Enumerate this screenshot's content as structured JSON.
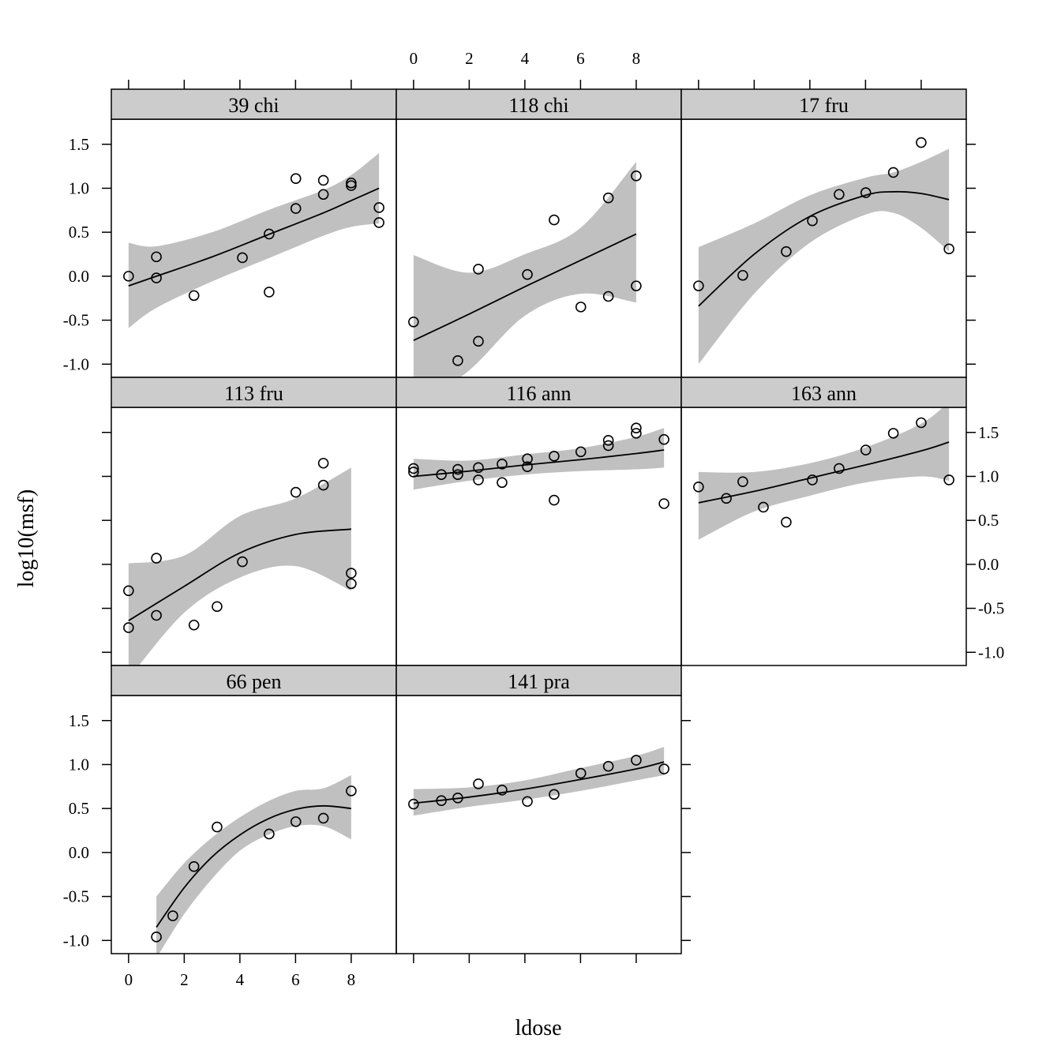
{
  "chart_data": {
    "type": "scatter",
    "layout": "lattice 3x3 panels with smooth fit and confidence band",
    "xlabel": "ldose",
    "ylabel": "log10(msf)",
    "xlim": [
      -0.62,
      9.62
    ],
    "ylim": [
      -1.15,
      1.785
    ],
    "x_ticks": [
      0,
      2,
      4,
      6,
      8
    ],
    "y_ticks": [
      -1.0,
      -0.5,
      0.0,
      0.5,
      1.0,
      1.5
    ],
    "y_tick_labels": [
      "-1.0",
      "-0.5",
      "0.0",
      "0.5",
      "1.0",
      "1.5"
    ],
    "colors": {
      "band": "#c0c0c0",
      "strip": "#cccccc",
      "line": "#000000",
      "points": "#000000"
    },
    "panels": [
      {
        "name": "39 chi",
        "col": 0,
        "row": 0,
        "points": [
          [
            0,
            0
          ],
          [
            1,
            0.22
          ],
          [
            1,
            -0.02
          ],
          [
            2.35,
            -0.22
          ],
          [
            4.09,
            0.21
          ],
          [
            5.05,
            0.48
          ],
          [
            5.05,
            -0.18
          ],
          [
            6.01,
            1.11
          ],
          [
            6.01,
            0.77
          ],
          [
            7,
            1.09
          ],
          [
            7,
            0.93
          ],
          [
            8,
            1.06
          ],
          [
            8,
            1.03
          ],
          [
            9,
            0.78
          ],
          [
            9,
            0.61
          ]
        ],
        "smooth": {
          "x": [
            0,
            1,
            3,
            5,
            7,
            8,
            9
          ],
          "fit": [
            -0.11,
            0.0,
            0.22,
            0.47,
            0.72,
            0.86,
            1.0
          ],
          "lower": [
            -0.59,
            -0.36,
            -0.06,
            0.2,
            0.46,
            0.56,
            0.6
          ],
          "upper": [
            0.38,
            0.34,
            0.5,
            0.75,
            0.98,
            1.15,
            1.4
          ]
        }
      },
      {
        "name": "118 chi",
        "col": 1,
        "row": 0,
        "points": [
          [
            0,
            -0.52
          ],
          [
            1.59,
            -0.96
          ],
          [
            2.33,
            -0.74
          ],
          [
            2.33,
            0.08
          ],
          [
            4.09,
            0.02
          ],
          [
            5.05,
            0.64
          ],
          [
            6.01,
            -0.35
          ],
          [
            7,
            0.89
          ],
          [
            7,
            -0.23
          ],
          [
            8,
            1.14
          ],
          [
            8,
            -0.11
          ]
        ],
        "smooth": {
          "x": [
            0,
            2,
            4,
            6,
            8
          ],
          "fit": [
            -0.73,
            -0.43,
            -0.12,
            0.18,
            0.48
          ],
          "lower": [
            -1.5,
            -1.07,
            -0.45,
            -0.2,
            -0.3
          ],
          "upper": [
            0.24,
            0.04,
            0.25,
            0.55,
            1.3
          ]
        }
      },
      {
        "name": "17 fru",
        "col": 2,
        "row": 0,
        "points": [
          [
            0,
            -0.11
          ],
          [
            1.59,
            0.01
          ],
          [
            3.15,
            0.28
          ],
          [
            4.09,
            0.63
          ],
          [
            5.05,
            0.93
          ],
          [
            6.01,
            0.95
          ],
          [
            7,
            1.18
          ],
          [
            8,
            1.52
          ],
          [
            9,
            0.31
          ]
        ],
        "smooth": {
          "x": [
            0,
            2,
            4,
            6,
            7,
            8,
            9
          ],
          "fit": [
            -0.34,
            0.25,
            0.68,
            0.92,
            0.96,
            0.94,
            0.87
          ],
          "lower": [
            -1.0,
            -0.2,
            0.38,
            0.7,
            0.72,
            0.55,
            0.28
          ],
          "upper": [
            0.33,
            0.6,
            0.92,
            1.12,
            1.18,
            1.3,
            1.45
          ]
        }
      },
      {
        "name": "113 fru",
        "col": 0,
        "row": 1,
        "points": [
          [
            0,
            -0.3
          ],
          [
            0,
            -0.72
          ],
          [
            1,
            0.07
          ],
          [
            1,
            -0.58
          ],
          [
            2.35,
            -0.69
          ],
          [
            3.18,
            -0.48
          ],
          [
            4.09,
            0.03
          ],
          [
            6.01,
            0.82
          ],
          [
            7,
            0.9
          ],
          [
            7,
            1.15
          ],
          [
            8,
            -0.1
          ],
          [
            8,
            -0.22
          ]
        ],
        "smooth": {
          "x": [
            0,
            2,
            4,
            6,
            8
          ],
          "fit": [
            -0.64,
            -0.25,
            0.13,
            0.34,
            0.4
          ],
          "lower": [
            -1.3,
            -0.55,
            -0.15,
            -0.02,
            -0.3
          ],
          "upper": [
            0.01,
            0.1,
            0.55,
            0.75,
            1.1
          ]
        }
      },
      {
        "name": "116 ann",
        "col": 1,
        "row": 1,
        "points": [
          [
            0,
            1.09
          ],
          [
            0,
            1.05
          ],
          [
            1,
            1.02
          ],
          [
            1.59,
            1.02
          ],
          [
            1.59,
            1.08
          ],
          [
            2.33,
            1.1
          ],
          [
            2.33,
            0.96
          ],
          [
            3.18,
            1.14
          ],
          [
            3.18,
            0.93
          ],
          [
            4.09,
            1.2
          ],
          [
            4.09,
            1.11
          ],
          [
            5.05,
            1.23
          ],
          [
            5.05,
            0.73
          ],
          [
            6.01,
            1.28
          ],
          [
            7,
            1.41
          ],
          [
            7,
            1.35
          ],
          [
            8,
            1.55
          ],
          [
            8,
            1.49
          ],
          [
            9,
            1.42
          ],
          [
            9,
            0.69
          ]
        ],
        "smooth": {
          "x": [
            0,
            2,
            4,
            6,
            8,
            9
          ],
          "fit": [
            1.0,
            1.06,
            1.13,
            1.19,
            1.26,
            1.3
          ],
          "lower": [
            0.85,
            0.95,
            1.02,
            1.06,
            1.08,
            1.1
          ],
          "upper": [
            1.2,
            1.18,
            1.25,
            1.32,
            1.45,
            1.55
          ]
        }
      },
      {
        "name": "163 ann",
        "col": 2,
        "row": 1,
        "points": [
          [
            0,
            0.88
          ],
          [
            1,
            0.75
          ],
          [
            1.59,
            0.94
          ],
          [
            2.33,
            0.65
          ],
          [
            3.15,
            0.48
          ],
          [
            4.09,
            0.96
          ],
          [
            5.05,
            1.09
          ],
          [
            6.01,
            1.3
          ],
          [
            7,
            1.49
          ],
          [
            8,
            1.61
          ],
          [
            9,
            0.96
          ]
        ],
        "smooth": {
          "x": [
            0,
            2,
            4,
            6,
            8,
            9
          ],
          "fit": [
            0.7,
            0.83,
            0.98,
            1.13,
            1.29,
            1.39
          ],
          "lower": [
            0.28,
            0.6,
            0.78,
            0.93,
            1.0,
            0.95
          ],
          "upper": [
            1.05,
            1.05,
            1.15,
            1.33,
            1.6,
            1.85
          ]
        }
      },
      {
        "name": "66 pen",
        "col": 0,
        "row": 2,
        "points": [
          [
            1,
            -0.96
          ],
          [
            1.59,
            -0.72
          ],
          [
            2.35,
            -0.16
          ],
          [
            3.18,
            0.29
          ],
          [
            5.05,
            0.21
          ],
          [
            6.01,
            0.35
          ],
          [
            7,
            0.39
          ],
          [
            8,
            0.7
          ]
        ],
        "smooth": {
          "x": [
            1,
            2,
            3,
            4,
            5,
            6,
            7,
            8
          ],
          "fit": [
            -0.85,
            -0.4,
            -0.05,
            0.2,
            0.38,
            0.49,
            0.53,
            0.5
          ],
          "lower": [
            -1.2,
            -0.7,
            -0.3,
            0.02,
            0.2,
            0.3,
            0.3,
            0.15
          ],
          "upper": [
            -0.5,
            -0.12,
            0.17,
            0.4,
            0.58,
            0.7,
            0.73,
            0.88
          ]
        }
      },
      {
        "name": "141 pra",
        "col": 1,
        "row": 2,
        "points": [
          [
            0,
            0.55
          ],
          [
            1,
            0.59
          ],
          [
            1.59,
            0.62
          ],
          [
            2.33,
            0.78
          ],
          [
            3.18,
            0.71
          ],
          [
            4.09,
            0.58
          ],
          [
            5.05,
            0.66
          ],
          [
            6.01,
            0.9
          ],
          [
            7,
            0.98
          ],
          [
            8,
            1.05
          ],
          [
            9,
            0.95
          ]
        ],
        "smooth": {
          "x": [
            0,
            2,
            4,
            6,
            8,
            9
          ],
          "fit": [
            0.56,
            0.63,
            0.72,
            0.83,
            0.95,
            1.03
          ],
          "lower": [
            0.42,
            0.52,
            0.6,
            0.7,
            0.82,
            0.88
          ],
          "upper": [
            0.72,
            0.74,
            0.82,
            0.96,
            1.1,
            1.2
          ]
        }
      }
    ]
  }
}
